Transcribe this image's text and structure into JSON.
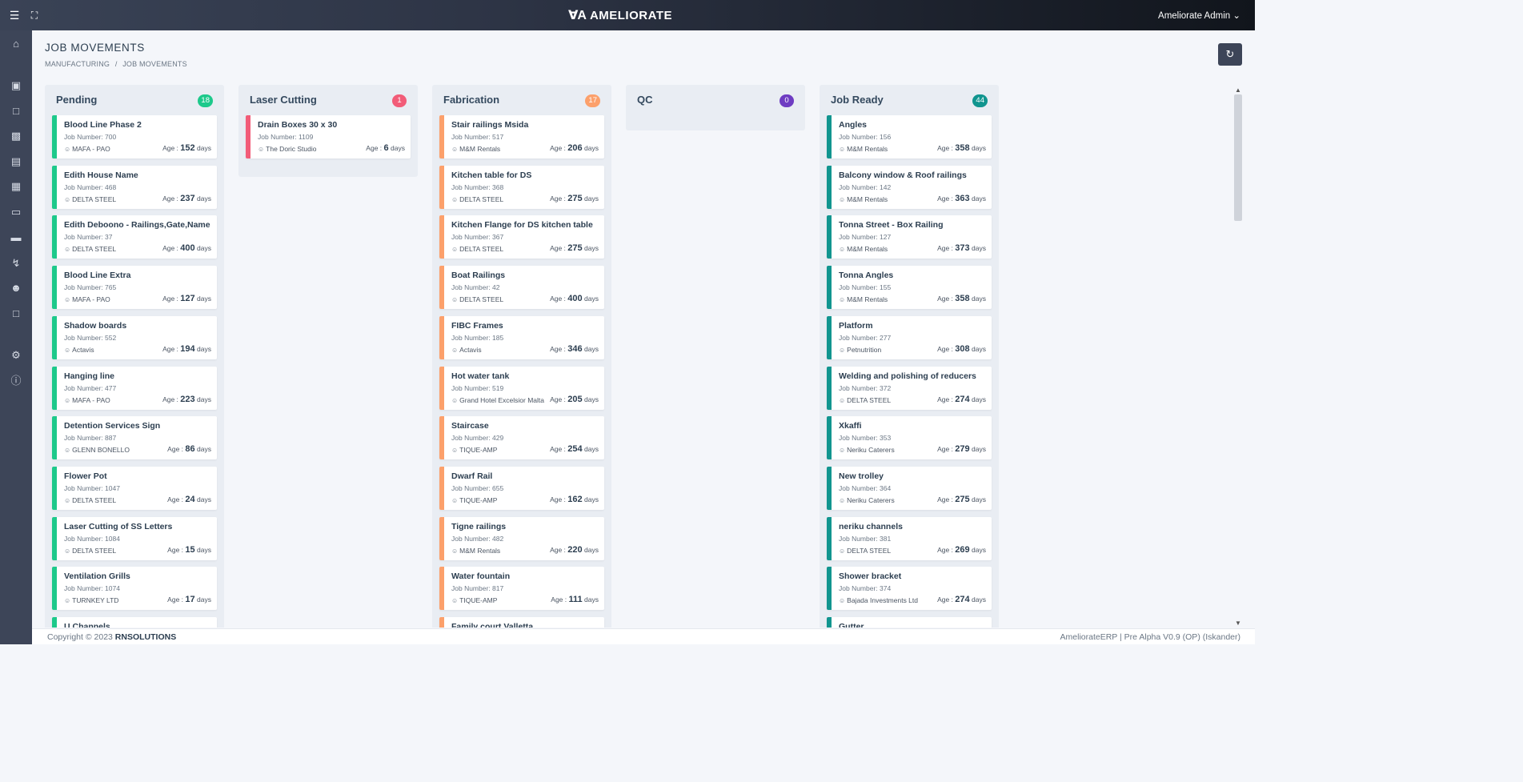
{
  "header": {
    "brand_logo": "ꓯA",
    "brand_name": "AMELIORATE",
    "user_name": "Ameliorate Admin"
  },
  "sidebar_icons": [
    "home-icon",
    "briefcase-icon",
    "folder-icon",
    "paint-roller-icon",
    "signpost-icon",
    "checklist-icon",
    "inbox-icon",
    "credit-card-icon",
    "lightning-icon",
    "users-icon",
    "folder-open-icon",
    "gear-icon",
    "info-icon"
  ],
  "page": {
    "title": "JOB MOVEMENTS",
    "breadcrumb_1": "MANUFACTURING",
    "breadcrumb_sep": "/",
    "breadcrumb_2": "JOB MOVEMENTS"
  },
  "colors": {
    "pending": "#1dc98b",
    "laser": "#f25c78",
    "fabrication": "#fca06b",
    "qc": "#6e3cc2",
    "job_ready": "#11958f"
  },
  "columns": [
    {
      "title": "Pending",
      "count": "18",
      "cards": [
        {
          "title": "Blood Line Phase 2",
          "job": "Job Number: 700",
          "client": "MAFA - PAO",
          "age_label": "Age :",
          "age": "152",
          "age_unit": "days"
        },
        {
          "title": "Edith House Name",
          "job": "Job Number: 468",
          "client": "DELTA STEEL",
          "age_label": "Age :",
          "age": "237",
          "age_unit": "days"
        },
        {
          "title": "Edith Deboono - Railings,Gate,Name",
          "job": "Job Number: 37",
          "client": "DELTA STEEL",
          "age_label": "Age :",
          "age": "400",
          "age_unit": "days"
        },
        {
          "title": "Blood Line Extra",
          "job": "Job Number: 765",
          "client": "MAFA - PAO",
          "age_label": "Age :",
          "age": "127",
          "age_unit": "days"
        },
        {
          "title": "Shadow boards",
          "job": "Job Number: 552",
          "client": "Actavis",
          "age_label": "Age :",
          "age": "194",
          "age_unit": "days"
        },
        {
          "title": "Hanging line",
          "job": "Job Number: 477",
          "client": "MAFA - PAO",
          "age_label": "Age :",
          "age": "223",
          "age_unit": "days"
        },
        {
          "title": "Detention Services Sign",
          "job": "Job Number: 887",
          "client": "GLENN BONELLO",
          "age_label": "Age :",
          "age": "86",
          "age_unit": "days"
        },
        {
          "title": "Flower Pot",
          "job": "Job Number: 1047",
          "client": "DELTA STEEL",
          "age_label": "Age :",
          "age": "24",
          "age_unit": "days"
        },
        {
          "title": "Laser Cutting of SS Letters",
          "job": "Job Number: 1084",
          "client": "DELTA STEEL",
          "age_label": "Age :",
          "age": "15",
          "age_unit": "days"
        },
        {
          "title": "Ventilation Grills",
          "job": "Job Number: 1074",
          "client": "TURNKEY LTD",
          "age_label": "Age :",
          "age": "17",
          "age_unit": "days"
        },
        {
          "title": "U Channels",
          "job": "",
          "client": "",
          "age_label": "",
          "age": "",
          "age_unit": ""
        }
      ]
    },
    {
      "title": "Laser Cutting",
      "count": "1",
      "cards": [
        {
          "title": "Drain Boxes 30 x 30",
          "job": "Job Number: 1109",
          "client": "The Doric Studio",
          "age_label": "Age :",
          "age": "6",
          "age_unit": "days"
        }
      ]
    },
    {
      "title": "Fabrication",
      "count": "17",
      "cards": [
        {
          "title": "Stair railings Msida",
          "job": "Job Number: 517",
          "client": "M&M Rentals",
          "age_label": "Age :",
          "age": "206",
          "age_unit": "days"
        },
        {
          "title": "Kitchen table for DS",
          "job": "Job Number: 368",
          "client": "DELTA STEEL",
          "age_label": "Age :",
          "age": "275",
          "age_unit": "days"
        },
        {
          "title": "Kitchen Flange for DS kitchen table",
          "job": "Job Number: 367",
          "client": "DELTA STEEL",
          "age_label": "Age :",
          "age": "275",
          "age_unit": "days"
        },
        {
          "title": "Boat Railings",
          "job": "Job Number: 42",
          "client": "DELTA STEEL",
          "age_label": "Age :",
          "age": "400",
          "age_unit": "days"
        },
        {
          "title": "FIBC Frames",
          "job": "Job Number: 185",
          "client": "Actavis",
          "age_label": "Age :",
          "age": "346",
          "age_unit": "days"
        },
        {
          "title": "Hot water tank",
          "job": "Job Number: 519",
          "client": "Grand Hotel Excelsior Malta",
          "age_label": "Age :",
          "age": "205",
          "age_unit": "days"
        },
        {
          "title": "Staircase",
          "job": "Job Number: 429",
          "client": "TIQUE-AMP",
          "age_label": "Age :",
          "age": "254",
          "age_unit": "days"
        },
        {
          "title": "Dwarf Rail",
          "job": "Job Number: 655",
          "client": "TIQUE-AMP",
          "age_label": "Age :",
          "age": "162",
          "age_unit": "days"
        },
        {
          "title": "Tigne railings",
          "job": "Job Number: 482",
          "client": "M&M Rentals",
          "age_label": "Age :",
          "age": "220",
          "age_unit": "days"
        },
        {
          "title": "Water fountain",
          "job": "Job Number: 817",
          "client": "TIQUE-AMP",
          "age_label": "Age :",
          "age": "111",
          "age_unit": "days"
        },
        {
          "title": "Family court Valletta",
          "job": "",
          "client": "",
          "age_label": "",
          "age": "",
          "age_unit": ""
        }
      ]
    },
    {
      "title": "QC",
      "count": "0",
      "cards": []
    },
    {
      "title": "Job Ready",
      "count": "44",
      "cards": [
        {
          "title": "Angles",
          "job": "Job Number: 156",
          "client": "M&M Rentals",
          "age_label": "Age :",
          "age": "358",
          "age_unit": "days"
        },
        {
          "title": "Balcony window & Roof railings",
          "job": "Job Number: 142",
          "client": "M&M Rentals",
          "age_label": "Age :",
          "age": "363",
          "age_unit": "days"
        },
        {
          "title": "Tonna Street - Box Railing",
          "job": "Job Number: 127",
          "client": "M&M Rentals",
          "age_label": "Age :",
          "age": "373",
          "age_unit": "days"
        },
        {
          "title": "Tonna Angles",
          "job": "Job Number: 155",
          "client": "M&M Rentals",
          "age_label": "Age :",
          "age": "358",
          "age_unit": "days"
        },
        {
          "title": "Platform",
          "job": "Job Number: 277",
          "client": "Petnutrition",
          "age_label": "Age :",
          "age": "308",
          "age_unit": "days"
        },
        {
          "title": "Welding and polishing of reducers",
          "job": "Job Number: 372",
          "client": "DELTA STEEL",
          "age_label": "Age :",
          "age": "274",
          "age_unit": "days"
        },
        {
          "title": "Xkaffi",
          "job": "Job Number: 353",
          "client": "Neriku Caterers",
          "age_label": "Age :",
          "age": "279",
          "age_unit": "days"
        },
        {
          "title": "New trolley",
          "job": "Job Number: 364",
          "client": "Neriku Caterers",
          "age_label": "Age :",
          "age": "275",
          "age_unit": "days"
        },
        {
          "title": "neriku channels",
          "job": "Job Number: 381",
          "client": "DELTA STEEL",
          "age_label": "Age :",
          "age": "269",
          "age_unit": "days"
        },
        {
          "title": "Shower bracket",
          "job": "Job Number: 374",
          "client": "Bajada Investments Ltd",
          "age_label": "Age :",
          "age": "274",
          "age_unit": "days"
        },
        {
          "title": "Gutter",
          "job": "",
          "client": "",
          "age_label": "",
          "age": "",
          "age_unit": ""
        }
      ]
    }
  ],
  "footer": {
    "copyright": "Copyright © 2023",
    "company": "RNSOLUTIONS",
    "version": "AmeliorateERP | Pre Alpha V0.9 (OP) (Iskander)"
  }
}
